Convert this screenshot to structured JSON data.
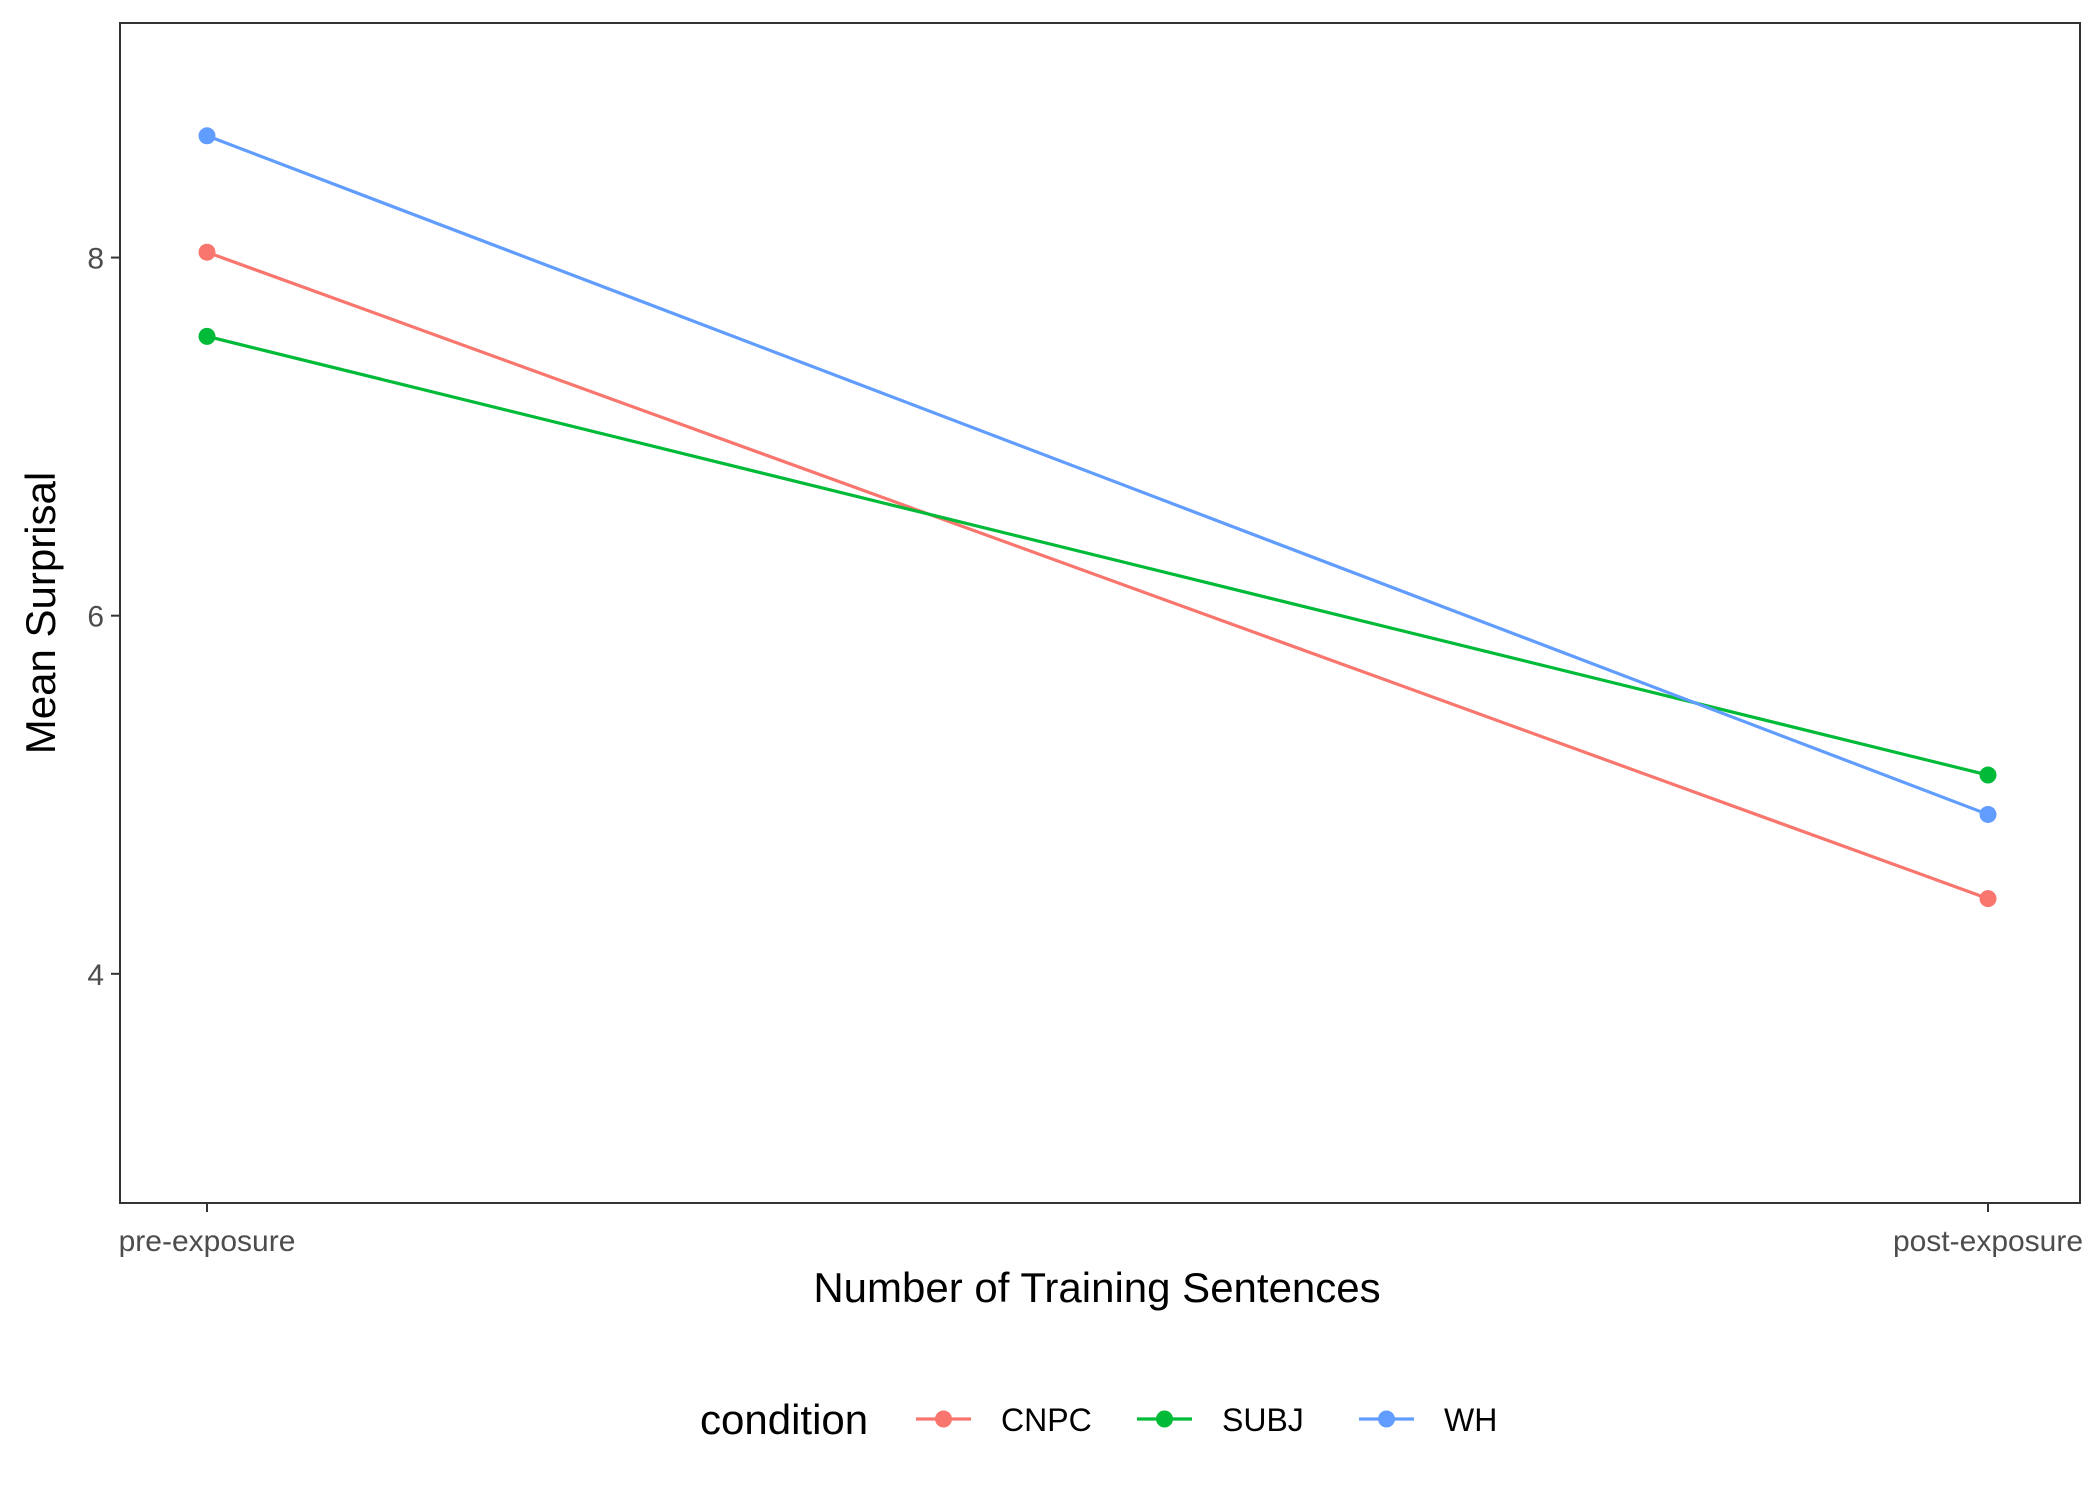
{
  "chart_data": {
    "type": "line",
    "title": "",
    "xlabel": "Number of Training Sentences",
    "ylabel": "Mean Surprisal",
    "categories": [
      "pre-exposure",
      "post-exposure"
    ],
    "y_ticks": [
      4,
      6,
      8
    ],
    "ylim": [
      2.72,
      9.31
    ],
    "grid": false,
    "legend": {
      "title": "condition",
      "position": "bottom"
    },
    "series": [
      {
        "name": "CNPC",
        "color": "#F8766D",
        "values": [
          8.03,
          4.42
        ]
      },
      {
        "name": "SUBJ",
        "color": "#00BA38",
        "values": [
          7.56,
          5.11
        ]
      },
      {
        "name": "WH",
        "color": "#619CFF",
        "values": [
          8.68,
          4.89
        ]
      }
    ]
  }
}
